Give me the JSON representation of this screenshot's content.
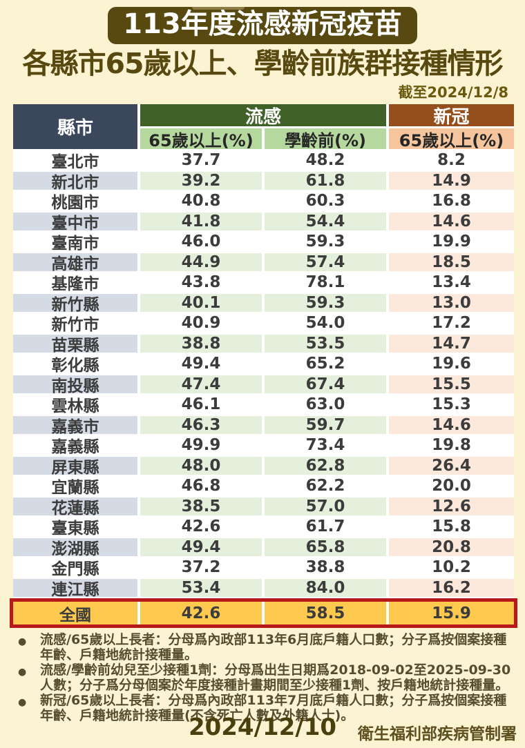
{
  "header": {
    "title": "113年度流感新冠疫苗",
    "subtitle": "各縣市65歲以上、學齡前族群接種情形",
    "as_of": "截至2024/12/8"
  },
  "table": {
    "county_col": "縣市",
    "flu_group": "流感",
    "covid_group": "新冠",
    "flu_sub1": "65歲以上(%)",
    "flu_sub2": "學齡前(%)",
    "covid_sub1": "65歲以上(%)"
  },
  "chart_data": {
    "type": "table",
    "title": "113年度流感新冠疫苗",
    "subtitle": "各縣市65歲以上、學齡前族群接種情形",
    "as_of": "2024/12/8",
    "columns": [
      "縣市",
      "流感 65歲以上(%)",
      "流感 學齡前(%)",
      "新冠 65歲以上(%)"
    ],
    "rows": [
      [
        "臺北市",
        37.7,
        48.2,
        8.2
      ],
      [
        "新北市",
        39.2,
        61.8,
        14.9
      ],
      [
        "桃園市",
        40.8,
        60.3,
        16.8
      ],
      [
        "臺中市",
        41.8,
        54.4,
        14.6
      ],
      [
        "臺南市",
        46.0,
        59.3,
        19.9
      ],
      [
        "高雄市",
        44.9,
        57.4,
        18.5
      ],
      [
        "基隆市",
        43.8,
        78.1,
        13.4
      ],
      [
        "新竹縣",
        40.1,
        59.3,
        13.0
      ],
      [
        "新竹市",
        40.9,
        54.0,
        17.2
      ],
      [
        "苗栗縣",
        38.8,
        53.5,
        14.7
      ],
      [
        "彰化縣",
        49.4,
        65.2,
        19.6
      ],
      [
        "南投縣",
        47.4,
        67.4,
        15.5
      ],
      [
        "雲林縣",
        46.1,
        63.0,
        15.3
      ],
      [
        "嘉義市",
        46.3,
        59.7,
        14.6
      ],
      [
        "嘉義縣",
        49.9,
        73.4,
        19.8
      ],
      [
        "屏東縣",
        48.0,
        62.8,
        26.4
      ],
      [
        "宜蘭縣",
        46.8,
        62.2,
        20.0
      ],
      [
        "花蓮縣",
        38.5,
        57.0,
        12.6
      ],
      [
        "臺東縣",
        42.6,
        61.7,
        15.8
      ],
      [
        "澎湖縣",
        49.4,
        65.8,
        20.8
      ],
      [
        "金門縣",
        37.2,
        38.8,
        10.2
      ],
      [
        "連江縣",
        53.4,
        84.0,
        16.2
      ]
    ],
    "total_row": [
      "全國",
      42.6,
      58.5,
      15.9
    ]
  },
  "notes": {
    "bullet": "●",
    "items": [
      "流感/65歲以上長者：分母爲內政部113年6月底戶籍人口數；分子爲按個案接種年齡、戶籍地統計接種量。",
      "流感/學齡前幼兒至少接種1劑：分母爲出生日期爲2018-09-02至2025-09-30人數；分子爲分母個案於年度接種計畫期間至少接種1劑、按戶籍地統計接種量。",
      "新冠/65歲以上長者：分母爲內政部113年7月底戶籍人口數；分子爲按個案接種年齡、戶籍地統計接種量(不含死亡人數及外籍人士)。"
    ]
  },
  "footer": {
    "date": "2024/12/10",
    "agency": "衛生福利部疾病管制署"
  },
  "colors": {
    "background": "#FCF3D2",
    "banner": "#57490F",
    "county_header": "#3B475A",
    "flu_header": "#406128",
    "covid_header": "#944F1D",
    "flu_subheader": "#B5D89E",
    "covid_subheader": "#F5C59E",
    "stripe_county": "#D5DBE4",
    "stripe_flu": "#E4F0DC",
    "stripe_covid": "#FCE9DB",
    "total_gold": "#FEC94F",
    "total_border_red": "#B7191B"
  }
}
